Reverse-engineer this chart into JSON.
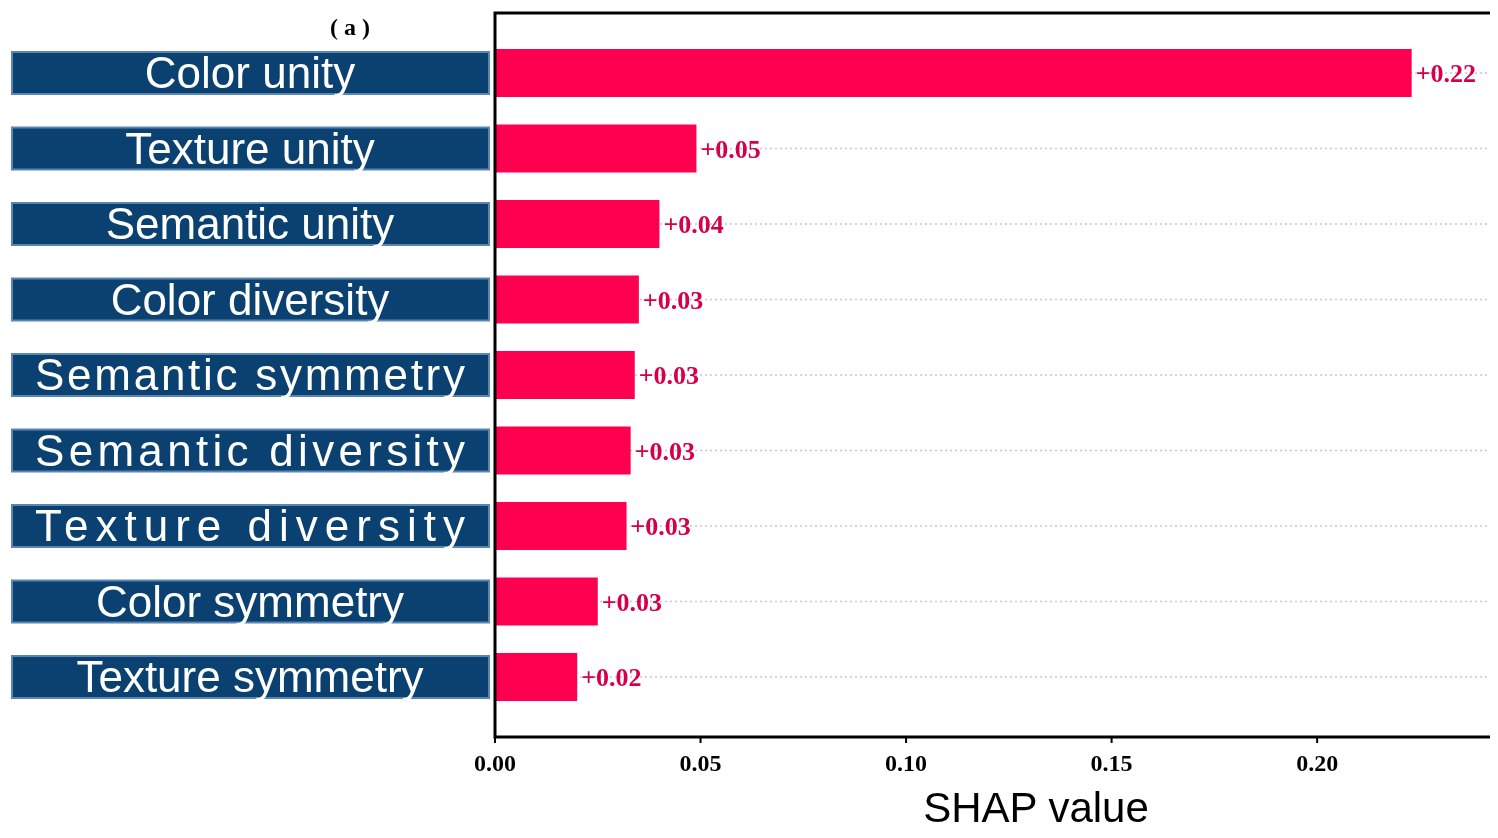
{
  "chart_data": {
    "type": "bar",
    "orientation": "horizontal",
    "title": "( a )",
    "xlabel": "SHAP value",
    "categories": [
      "Color unity",
      "Texture unity",
      "Semantic unity",
      "Color diversity",
      "Semantic symmetry",
      "Semantic diversity",
      "Texture diversity",
      "Color symmetry",
      "Texture symmetry"
    ],
    "values": [
      0.223,
      0.049,
      0.04,
      0.035,
      0.034,
      0.033,
      0.032,
      0.025,
      0.02
    ],
    "value_labels": [
      "+0.22",
      "+0.05",
      "+0.04",
      "+0.03",
      "+0.03",
      "+0.03",
      "+0.03",
      "+0.03",
      "+0.02"
    ],
    "color": "#ff0051",
    "xlim": [
      0,
      0.244
    ],
    "xticks": [
      {
        "value": 0,
        "label": "0.00"
      },
      {
        "value": 0.05,
        "label": "0.05"
      },
      {
        "value": 0.1,
        "label": "0.10"
      },
      {
        "value": 0.15,
        "label": "0.15"
      },
      {
        "value": 0.2,
        "label": "0.20"
      }
    ],
    "grid": "y"
  }
}
